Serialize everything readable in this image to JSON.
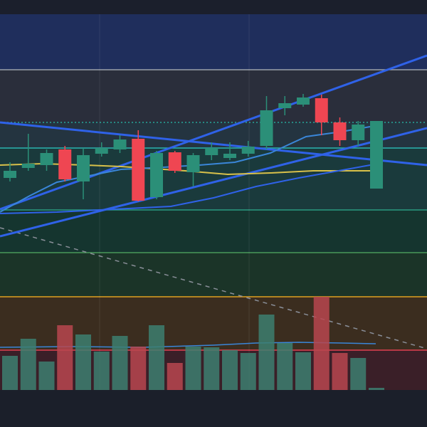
{
  "chart_data": {
    "type": "candlestick",
    "ylim": [
      0,
      600
    ],
    "up_color": "#2b8f78",
    "down_color": "#ef4652",
    "open": [
      350,
      364,
      368,
      390,
      345,
      384,
      390,
      405,
      323,
      386,
      358,
      382,
      378,
      384,
      395,
      448,
      453,
      462,
      428,
      403,
      335
    ],
    "high": [
      372,
      412,
      390,
      395,
      392,
      400,
      410,
      417,
      388,
      388,
      385,
      400,
      400,
      402,
      465,
      465,
      468,
      467,
      435,
      430,
      430
    ],
    "low": [
      345,
      360,
      360,
      345,
      320,
      380,
      385,
      317,
      320,
      357,
      338,
      375,
      375,
      380,
      390,
      438,
      450,
      410,
      395,
      395,
      335
    ],
    "close": [
      360,
      370,
      385,
      348,
      382,
      392,
      404,
      318,
      385,
      360,
      382,
      392,
      384,
      394,
      445,
      455,
      463,
      428,
      403,
      425,
      430
    ],
    "volume": {
      "ylim": [
        0,
        140
      ],
      "up_color": "#3d7f70",
      "down_color": "#b9474f",
      "values": [
        48,
        72,
        40,
        91,
        78,
        54,
        76,
        61,
        91,
        38,
        61,
        60,
        56,
        52,
        106,
        66,
        53,
        131,
        52,
        45,
        3
      ]
    }
  }
}
